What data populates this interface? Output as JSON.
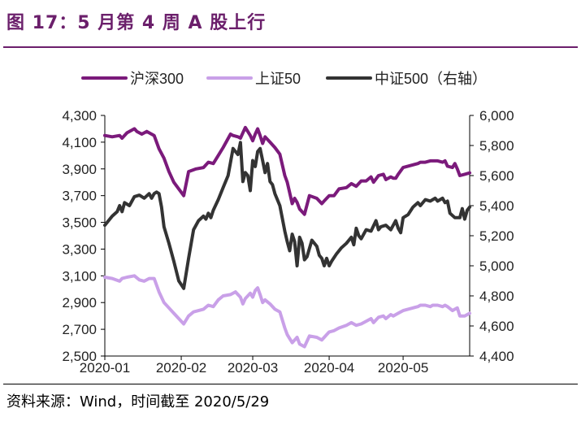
{
  "title": "图 17：5 月第 4 周 A 股上行",
  "source": "资料来源：Wind，时间截至 2020/5/29",
  "colors": {
    "title": "#6b1f6b",
    "hs300": "#7b1a7b",
    "sz50": "#c9a0e8",
    "zz500": "#333333"
  },
  "chart_data": {
    "type": "line",
    "title": "",
    "xlabel": "",
    "ylabel": "",
    "y2label": "",
    "x_tick_labels": [
      "2020-01",
      "2020-02",
      "2020-03",
      "2020-04",
      "2020-05"
    ],
    "x_tick_days": [
      0,
      31,
      60,
      91,
      121
    ],
    "x_range": [
      0,
      148
    ],
    "ylim": [
      2500,
      4300
    ],
    "y_ticks": [
      2500,
      2700,
      2900,
      3100,
      3300,
      3500,
      3700,
      3900,
      4100,
      4300
    ],
    "y_tick_labels": [
      "2,500",
      "2,700",
      "2,900",
      "3,100",
      "3,300",
      "3,500",
      "3,700",
      "3,900",
      "4,100",
      "4,300"
    ],
    "y2lim": [
      4400,
      6000
    ],
    "y2_ticks": [
      4400,
      4600,
      4800,
      5000,
      5200,
      5400,
      5600,
      5800,
      6000
    ],
    "y2_tick_labels": [
      "4,400",
      "4,600",
      "4,800",
      "5,000",
      "5,200",
      "5,400",
      "5,600",
      "5,800",
      "6,000"
    ],
    "legend_position": "top",
    "series": [
      {
        "name": "沪深300",
        "axis": "left",
        "x": [
          0,
          3,
          6,
          7,
          9,
          12,
          13,
          15,
          17,
          20,
          22,
          24,
          26,
          28,
          32,
          34,
          37,
          40,
          42,
          44,
          46,
          48,
          51,
          52,
          54,
          55,
          57,
          59,
          60,
          61,
          62,
          63,
          64,
          65,
          67,
          69,
          71,
          73,
          74,
          76,
          77,
          78,
          79,
          81,
          83,
          86,
          88,
          89,
          90,
          91,
          93,
          95,
          98,
          100,
          102,
          104,
          106,
          108,
          109,
          111,
          113,
          114,
          116,
          117,
          118,
          119,
          121,
          125,
          127,
          128,
          130,
          132,
          133,
          135,
          137,
          138,
          139,
          141,
          142,
          143,
          144,
          146,
          148
        ],
        "y": [
          4150,
          4140,
          4150,
          4130,
          4170,
          4200,
          4180,
          4160,
          4180,
          4150,
          4050,
          3980,
          3880,
          3800,
          3700,
          3880,
          3900,
          3910,
          3950,
          3940,
          4000,
          4060,
          4160,
          4150,
          4140,
          4130,
          4210,
          4150,
          4110,
          4160,
          4200,
          4150,
          4090,
          4140,
          4100,
          4060,
          4010,
          3850,
          3800,
          3640,
          3680,
          3650,
          3600,
          3560,
          3700,
          3680,
          3640,
          3660,
          3680,
          3700,
          3700,
          3750,
          3760,
          3790,
          3770,
          3810,
          3810,
          3840,
          3800,
          3850,
          3860,
          3820,
          3840,
          3830,
          3830,
          3860,
          3910,
          3930,
          3940,
          3950,
          3950,
          3960,
          3960,
          3960,
          3950,
          3960,
          3920,
          3910,
          3940,
          3900,
          3850,
          3860,
          3870
        ]
      },
      {
        "name": "上证50",
        "axis": "left",
        "x": [
          0,
          3,
          6,
          7,
          9,
          12,
          14,
          16,
          18,
          20,
          22,
          24,
          26,
          28,
          32,
          34,
          36,
          40,
          42,
          44,
          46,
          48,
          51,
          53,
          55,
          56,
          57,
          59,
          60,
          61,
          62,
          63,
          64,
          65,
          67,
          69,
          71,
          73,
          74,
          76,
          77,
          78,
          79,
          81,
          83,
          86,
          88,
          89,
          90,
          91,
          93,
          95,
          98,
          100,
          102,
          104,
          106,
          108,
          109,
          111,
          113,
          114,
          116,
          117,
          119,
          121,
          125,
          127,
          128,
          130,
          132,
          133,
          135,
          137,
          138,
          139,
          141,
          142,
          143,
          144,
          146,
          148
        ],
        "y": [
          3090,
          3080,
          3060,
          3080,
          3090,
          3100,
          3070,
          3060,
          3080,
          3080,
          2980,
          2900,
          2860,
          2820,
          2740,
          2800,
          2830,
          2850,
          2880,
          2870,
          2920,
          2950,
          2960,
          2980,
          2940,
          2890,
          2930,
          2970,
          2940,
          2990,
          3010,
          2960,
          2900,
          2920,
          2890,
          2850,
          2830,
          2710,
          2660,
          2600,
          2620,
          2640,
          2590,
          2570,
          2650,
          2640,
          2620,
          2640,
          2660,
          2680,
          2690,
          2710,
          2730,
          2750,
          2730,
          2740,
          2760,
          2780,
          2750,
          2790,
          2800,
          2780,
          2810,
          2800,
          2820,
          2840,
          2860,
          2870,
          2880,
          2880,
          2870,
          2880,
          2880,
          2870,
          2880,
          2870,
          2840,
          2850,
          2860,
          2800,
          2800,
          2820
        ]
      },
      {
        "name": "中证500（右轴）",
        "axis": "right",
        "x": [
          0,
          3,
          5,
          6,
          7,
          8,
          10,
          12,
          14,
          16,
          18,
          19,
          20,
          21,
          22,
          23,
          24,
          26,
          28,
          30,
          32,
          34,
          36,
          38,
          40,
          41,
          42,
          43,
          44,
          46,
          48,
          50,
          52,
          54,
          55,
          56,
          57,
          58,
          59,
          60,
          61,
          62,
          63,
          64,
          65,
          66,
          67,
          68,
          69,
          71,
          73,
          74,
          75,
          76,
          77,
          78,
          79,
          80,
          81,
          82,
          84,
          86,
          87,
          88,
          89,
          90,
          91,
          92,
          94,
          96,
          98,
          100,
          101,
          102,
          103,
          104,
          106,
          108,
          110,
          111,
          112,
          114,
          116,
          118,
          119,
          120,
          121,
          123,
          125,
          127,
          128,
          130,
          132,
          133,
          134,
          135,
          136,
          137,
          138,
          139,
          140,
          142,
          144,
          145,
          146,
          147,
          148
        ],
        "y": [
          5270,
          5330,
          5360,
          5400,
          5360,
          5420,
          5400,
          5460,
          5470,
          5450,
          5480,
          5450,
          5480,
          5490,
          5480,
          5390,
          5260,
          5150,
          5030,
          4900,
          4850,
          5050,
          5240,
          5300,
          5330,
          5310,
          5350,
          5320,
          5370,
          5440,
          5520,
          5600,
          5780,
          5740,
          5820,
          5560,
          5620,
          5600,
          5500,
          5700,
          5660,
          5760,
          5780,
          5700,
          5620,
          5680,
          5560,
          5540,
          5480,
          5400,
          5230,
          5160,
          5100,
          5210,
          5160,
          5000,
          5190,
          5150,
          5040,
          5060,
          5170,
          5130,
          5070,
          5050,
          5000,
          5050,
          5000,
          5030,
          5080,
          5120,
          5150,
          5190,
          5140,
          5250,
          5200,
          5180,
          5240,
          5230,
          5300,
          5240,
          5260,
          5270,
          5240,
          5300,
          5250,
          5220,
          5320,
          5340,
          5390,
          5420,
          5400,
          5440,
          5430,
          5440,
          5450,
          5430,
          5440,
          5450,
          5420,
          5430,
          5350,
          5320,
          5320,
          5380,
          5310,
          5370,
          5390
        ]
      }
    ]
  }
}
